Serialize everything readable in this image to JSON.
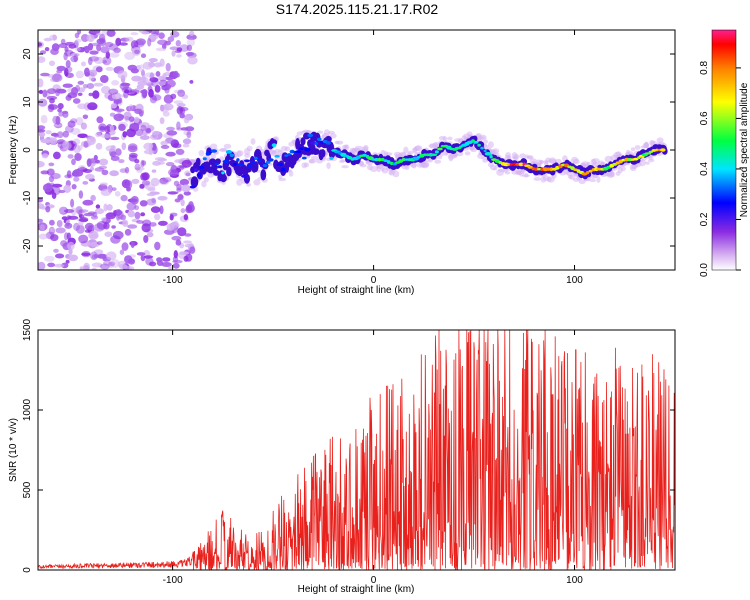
{
  "title": "S174.2025.115.21.17.R02",
  "colors": {
    "snr_line": "#e8211d",
    "scatter_noise": "#a259e8",
    "track_outline": "#3a0ccc"
  },
  "chart_data": [
    {
      "type": "heatmap",
      "name": "spectrogram",
      "xlabel": "Height of straight line (km)",
      "ylabel": "Frequency (Hz)",
      "xlim": [
        -167,
        150
      ],
      "ylim": [
        -25,
        25
      ],
      "x_ticks": [
        -100,
        0,
        100
      ],
      "y_ticks": [
        -20,
        -10,
        0,
        10,
        20
      ],
      "colorbar": {
        "label": "Normalized spectral amplitude",
        "range": [
          0,
          0.95
        ],
        "ticks": [
          "0.0",
          "0.2",
          "0.4",
          "0.6",
          "0.8"
        ],
        "colormap": "rainbow (violet to red)"
      },
      "noise_region": {
        "x_range": [
          -167,
          -90
        ],
        "y_range": [
          -25,
          25
        ]
      },
      "track": {
        "x": [
          -90,
          -85,
          -80,
          -75,
          -70,
          -65,
          -60,
          -55,
          -50,
          -45,
          -40,
          -35,
          -30,
          -25,
          -20,
          -15,
          -10,
          -5,
          0,
          5,
          10,
          15,
          20,
          25,
          30,
          35,
          40,
          45,
          50,
          55,
          60,
          65,
          70,
          75,
          80,
          85,
          90,
          95,
          100,
          105,
          110,
          115,
          120,
          125,
          130,
          135,
          140,
          145
        ],
        "freq": [
          -6,
          -3,
          -2,
          -4,
          -1,
          -5,
          -2,
          -4,
          0,
          -3,
          -1,
          0,
          2,
          1,
          0,
          -1,
          -2,
          -1,
          -2,
          -2,
          -3,
          -2,
          -2,
          -1,
          -1,
          1,
          0,
          1,
          2,
          0,
          -2,
          -3,
          -3,
          -3,
          -4,
          -4,
          -4,
          -3,
          -4,
          -5,
          -4,
          -4,
          -3,
          -2,
          -2,
          -1,
          0,
          0
        ],
        "amp": [
          0.25,
          0.35,
          0.3,
          0.4,
          0.35,
          0.3,
          0.35,
          0.3,
          0.4,
          0.35,
          0.3,
          0.35,
          0.3,
          0.35,
          0.4,
          0.45,
          0.5,
          0.5,
          0.55,
          0.55,
          0.5,
          0.55,
          0.5,
          0.5,
          0.55,
          0.55,
          0.5,
          0.5,
          0.55,
          0.5,
          0.6,
          0.8,
          0.9,
          0.9,
          0.85,
          0.8,
          0.85,
          0.8,
          0.75,
          0.8,
          0.75,
          0.7,
          0.7,
          0.75,
          0.7,
          0.7,
          0.75,
          0.8
        ]
      }
    },
    {
      "type": "line",
      "name": "snr",
      "xlabel": "Height of straight line (km)",
      "ylabel": "SNR (10 * v/v)",
      "xlim": [
        -167,
        150
      ],
      "ylim": [
        0,
        1500
      ],
      "x_ticks": [
        -100,
        0,
        100
      ],
      "y_ticks": [
        0,
        500,
        1000,
        1500
      ],
      "x": [
        -167,
        -150,
        -130,
        -110,
        -95,
        -85,
        -80,
        -75,
        -70,
        -65,
        -60,
        -55,
        -50,
        -45,
        -40,
        -35,
        -30,
        -25,
        -20,
        -15,
        -10,
        -5,
        0,
        5,
        10,
        15,
        20,
        25,
        30,
        35,
        40,
        45,
        50,
        55,
        60,
        65,
        70,
        75,
        80,
        85,
        90,
        95,
        100,
        105,
        110,
        115,
        120,
        125,
        130,
        135,
        140,
        145,
        150
      ],
      "y": [
        20,
        25,
        30,
        35,
        40,
        90,
        150,
        200,
        160,
        120,
        110,
        140,
        200,
        260,
        300,
        330,
        380,
        420,
        460,
        430,
        470,
        500,
        560,
        610,
        640,
        680,
        720,
        750,
        790,
        840,
        830,
        850,
        870,
        890,
        880,
        860,
        850,
        830,
        800,
        780,
        790,
        770,
        740,
        720,
        700,
        720,
        700,
        690,
        700,
        720,
        700,
        690,
        700
      ]
    }
  ]
}
